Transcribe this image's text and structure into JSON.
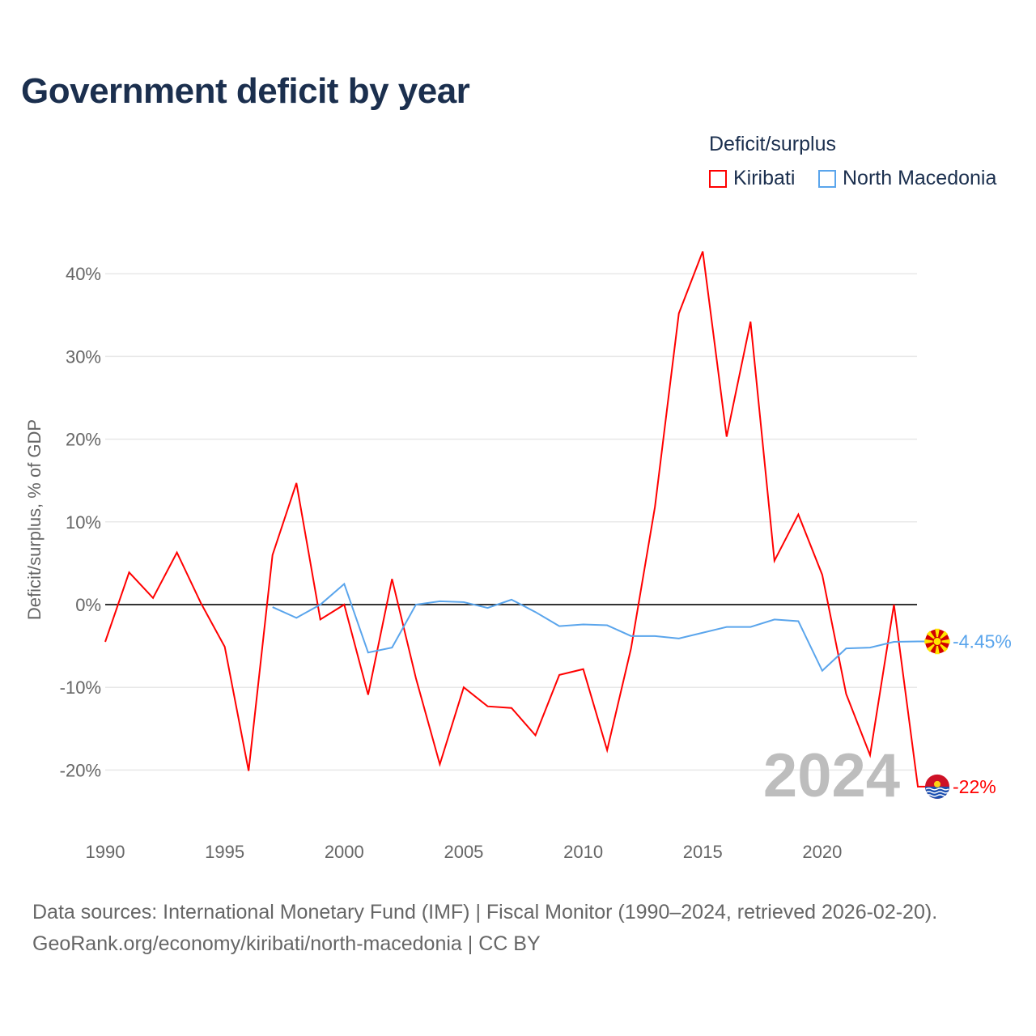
{
  "title": "Government deficit by year",
  "legend": {
    "title": "Deficit/surplus",
    "items": [
      {
        "label": "Kiribati",
        "color": "#ff0000"
      },
      {
        "label": "North Macedonia",
        "color": "#5aa5ec"
      }
    ]
  },
  "source": {
    "line1": "Data sources: International Monetary Fund (IMF) | Fiscal Monitor (1990–2024, retrieved 2026-02-20).",
    "line2": "GeoRank.org/economy/kiribati/north-macedonia | CC BY"
  },
  "chart_data": {
    "type": "line",
    "title": "Government deficit by year",
    "xlabel": "",
    "ylabel": "Deficit/surplus, % of GDP",
    "xlim": [
      1990,
      2024
    ],
    "ylim": [
      -25,
      45
    ],
    "xticks": [
      1990,
      1995,
      2000,
      2005,
      2010,
      2015,
      2020
    ],
    "xtick_labels": [
      "1990",
      "1995",
      "2000",
      "2005",
      "2010",
      "2015",
      "2020"
    ],
    "yticks": [
      -20,
      -10,
      0,
      10,
      20,
      30,
      40
    ],
    "ytick_labels": [
      "-20%",
      "-10%",
      "0%",
      "10%",
      "20%",
      "30%",
      "40%"
    ],
    "grid": true,
    "legend_position": "top-right",
    "year_watermark": "2024",
    "series": [
      {
        "name": "Kiribati",
        "color": "#ff0000",
        "end_label": "-22%",
        "x": [
          1990,
          1991,
          1992,
          1993,
          1994,
          1995,
          1996,
          1997,
          1998,
          1999,
          2000,
          2001,
          2002,
          2003,
          2004,
          2005,
          2006,
          2007,
          2008,
          2009,
          2010,
          2011,
          2012,
          2013,
          2014,
          2015,
          2016,
          2017,
          2018,
          2019,
          2020,
          2021,
          2022,
          2023,
          2024
        ],
        "values": [
          -4.5,
          3.9,
          0.8,
          6.3,
          0.2,
          -5.1,
          -20.1,
          6.0,
          14.7,
          -1.8,
          0,
          -10.9,
          3.1,
          -8.9,
          -19.3,
          -10.0,
          -12.3,
          -12.5,
          -15.8,
          -8.5,
          -7.8,
          -17.6,
          -5.3,
          11.8,
          35.2,
          42.7,
          20.3,
          34.2,
          5.3,
          10.9,
          3.6,
          -10.8,
          -18.2,
          0,
          -22
        ]
      },
      {
        "name": "North Macedonia",
        "color": "#5aa5ec",
        "end_label": "-4.45%",
        "x": [
          1997,
          1998,
          1999,
          2000,
          2001,
          2002,
          2003,
          2004,
          2005,
          2006,
          2007,
          2008,
          2009,
          2010,
          2011,
          2012,
          2013,
          2014,
          2015,
          2016,
          2017,
          2018,
          2019,
          2020,
          2021,
          2022,
          2023,
          2024
        ],
        "values": [
          -0.3,
          -1.6,
          0,
          2.5,
          -5.8,
          -5.2,
          0,
          0.4,
          0.3,
          -0.4,
          0.6,
          -0.9,
          -2.6,
          -2.4,
          -2.5,
          -3.8,
          -3.8,
          -4.1,
          -3.4,
          -2.7,
          -2.7,
          -1.8,
          -2.0,
          -8.0,
          -5.3,
          -5.2,
          -4.5,
          -4.45
        ]
      }
    ]
  }
}
